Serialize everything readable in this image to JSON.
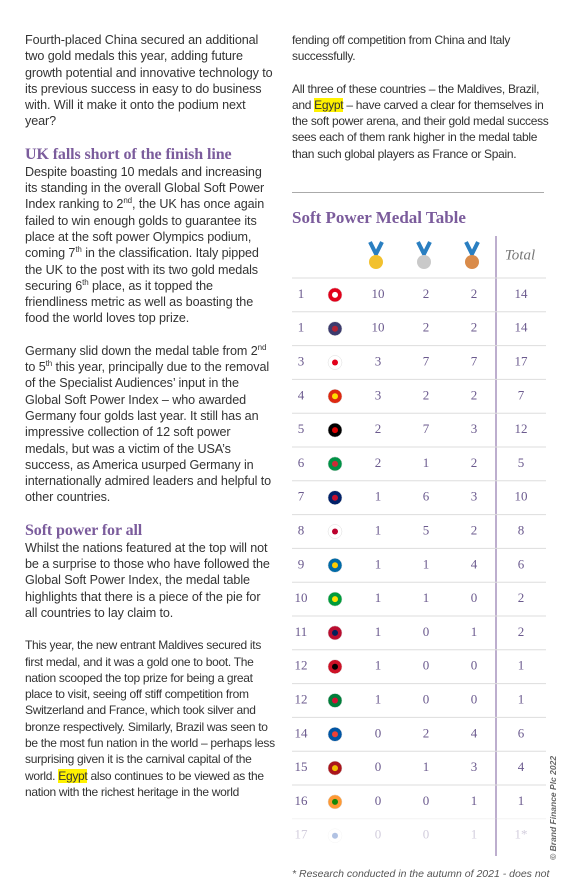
{
  "article": {
    "left": {
      "p1": "Fourth-placed China secured an additional two gold medals this year, adding future growth potential and innovative technology to its previous success in easy to do business with. Will it make it onto the podium next year?",
      "heading1": "UK falls short of the finish line",
      "p2": [
        "Despite boasting 10 medals and increasing its standing in the overall Global Soft Power Index ranking to 2",
        "nd",
        ", the UK has once again failed to win enough golds to guarantee its place at the soft power Olympics podium, coming 7",
        "th",
        " in the classification. Italy pipped the UK to the post with its two gold medals securing 6",
        "th",
        " place, as it topped the friendliness metric as well as boasting the food the world loves top prize."
      ],
      "p3": [
        "Germany slid down the medal table from 2",
        "nd",
        " to 5",
        "th",
        " this year, principally due to the removal of the Specialist Audiences’ input in the Global Soft Power Index – who awarded Germany four golds last year. It still has an impressive collection of 12 soft power medals, but was a victim of the USA’s success, as America usurped Germany in internationally admired leaders and helpful to other countries."
      ],
      "heading2": "Soft power for all",
      "p4": "Whilst the nations featured at the top will not be a surprise to those who have followed the Global Soft Power Index, the medal table highlights that there is a piece of the pie for all countries to lay claim to.",
      "p5": [
        "This year, the new entrant Maldives secured its first medal, and it was a gold one to boot. The nation scooped the top prize for being a great place to visit, seeing off stiff competition from Switzerland and France, which took silver and bronze respectively. Similarly, Brazil was seen to be the most fun nation in the world – perhaps less surprising given it is the carnival capital of the world. ",
        "Egypt",
        " also continues to be viewed as the nation with the richest heritage in the world"
      ]
    },
    "right": {
      "p1": "fending off competition from China and Italy successfully.",
      "p2": [
        "All three of these countries – the Maldives, Brazil, and ",
        "Egypt",
        " – have carved a clear for themselves in the soft power arena, and their gold medal success sees each of them rank higher in the medal table than such global players as France or Spain."
      ]
    }
  },
  "medal_table": {
    "title": "Soft Power Medal Table",
    "total_header": "Total",
    "rows": [
      [
        1,
        10,
        2,
        2,
        14
      ],
      [
        1,
        10,
        2,
        2,
        14
      ],
      [
        3,
        3,
        7,
        7,
        17
      ],
      [
        4,
        3,
        2,
        2,
        7
      ],
      [
        5,
        2,
        7,
        3,
        12
      ],
      [
        6,
        2,
        1,
        2,
        5
      ],
      [
        7,
        1,
        6,
        3,
        10
      ],
      [
        8,
        1,
        5,
        2,
        8
      ],
      [
        9,
        1,
        1,
        4,
        6
      ],
      [
        10,
        1,
        1,
        0,
        2
      ],
      [
        11,
        1,
        0,
        1,
        2
      ],
      [
        12,
        1,
        0,
        0,
        1
      ],
      [
        12,
        1,
        0,
        0,
        1
      ],
      [
        14,
        0,
        2,
        4,
        6
      ],
      [
        15,
        0,
        1,
        3,
        4
      ],
      [
        16,
        0,
        0,
        1,
        1
      ],
      [
        17,
        0,
        0,
        1,
        "1*"
      ]
    ],
    "footnote": "* Research conducted in the autumn of 2021 - does not"
  },
  "credit": "© Brand Finance Plc 2022"
}
